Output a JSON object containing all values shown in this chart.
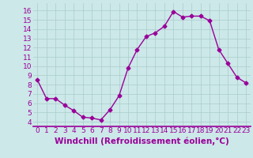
{
  "x": [
    0,
    1,
    2,
    3,
    4,
    5,
    6,
    7,
    8,
    9,
    10,
    11,
    12,
    13,
    14,
    15,
    16,
    17,
    18,
    19,
    20,
    21,
    22,
    23
  ],
  "y": [
    8.5,
    6.5,
    6.5,
    5.8,
    5.2,
    4.5,
    4.4,
    4.2,
    5.3,
    6.8,
    9.8,
    11.8,
    13.2,
    13.6,
    14.3,
    15.9,
    15.3,
    15.4,
    15.4,
    14.9,
    11.8,
    10.3,
    8.8,
    8.2
  ],
  "line_color": "#990099",
  "marker": "D",
  "marker_size": 2.5,
  "bg_color": "#cce8e8",
  "grid_color": "#aacccc",
  "xlabel": "Windchill (Refroidissement éolien,°C)",
  "xlabel_color": "#990099",
  "yticks": [
    4,
    5,
    6,
    7,
    8,
    9,
    10,
    11,
    12,
    13,
    14,
    15,
    16
  ],
  "ylim": [
    3.5,
    16.8
  ],
  "xlim": [
    -0.5,
    23.5
  ],
  "tick_fontsize": 6.5,
  "label_fontsize": 7.5,
  "spine_color": "#990099"
}
